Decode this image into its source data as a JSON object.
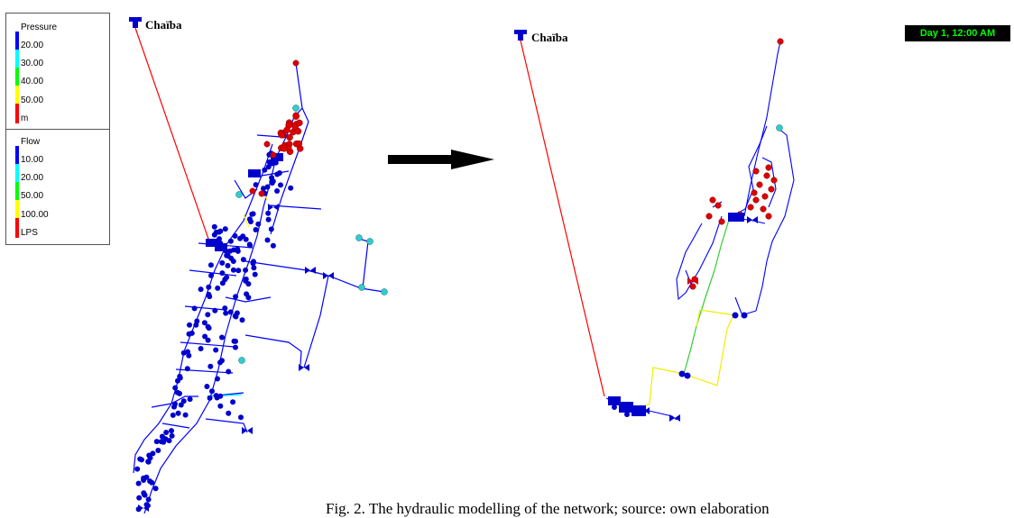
{
  "legend_pressure": {
    "title": "Pressure",
    "items": [
      {
        "label": "20.00",
        "color": "#0000ff"
      },
      {
        "label": "30.00",
        "color": "#00ffff"
      },
      {
        "label": "40.00",
        "color": "#00ff00"
      },
      {
        "label": "50.00",
        "color": "#ffff00"
      },
      {
        "label": "m",
        "color": "#ff0000"
      }
    ]
  },
  "legend_flow": {
    "title": "Flow",
    "items": [
      {
        "label": "10.00",
        "color": "#0000ff"
      },
      {
        "label": "20.00",
        "color": "#00ffff"
      },
      {
        "label": "50.00",
        "color": "#00ff00"
      },
      {
        "label": "100.00",
        "color": "#ffff00"
      },
      {
        "label": "LPS",
        "color": "#ff0000"
      }
    ]
  },
  "network_left": {
    "reservoir_label": "Chaïba"
  },
  "network_right": {
    "reservoir_label": "Chaïba"
  },
  "time_display": "Day 1, 12:00 AM",
  "caption": "Fig. 2. The hydraulic modelling of the network; source: own elaboration"
}
